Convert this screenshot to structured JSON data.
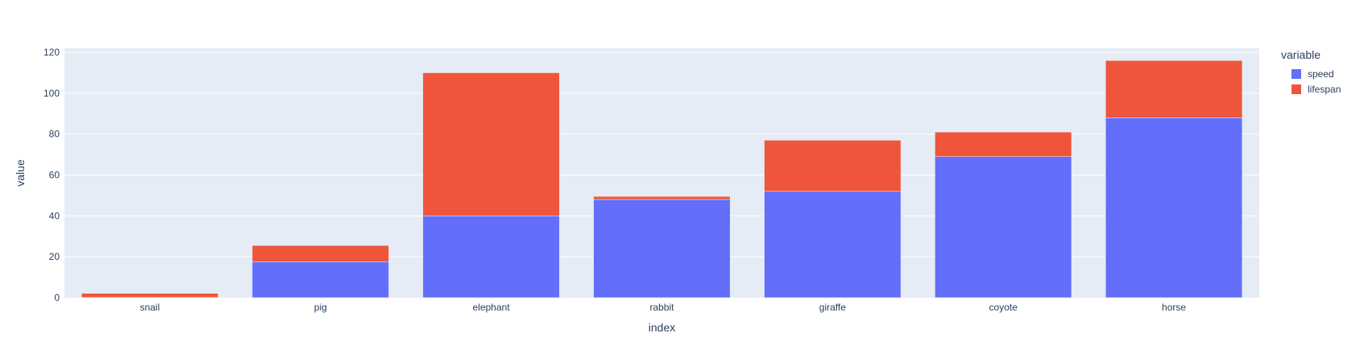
{
  "chart_data": {
    "type": "bar",
    "barmode": "stack",
    "categories": [
      "snail",
      "pig",
      "elephant",
      "rabbit",
      "giraffe",
      "coyote",
      "horse"
    ],
    "series": [
      {
        "name": "speed",
        "color": "#636efa",
        "values": [
          0.1,
          17.5,
          40,
          48,
          52,
          69,
          88
        ]
      },
      {
        "name": "lifespan",
        "color": "#ef553b",
        "values": [
          2,
          8,
          70,
          1.5,
          25,
          12,
          28
        ]
      }
    ],
    "xlabel": "index",
    "ylabel": "value",
    "ylim": [
      0,
      122
    ],
    "yticks": [
      0,
      20,
      40,
      60,
      80,
      100,
      120
    ],
    "grid": true,
    "legend": {
      "title": "variable",
      "placement": "right"
    },
    "plot_background": "#e5ecf6",
    "grid_color": "#ffffff"
  }
}
